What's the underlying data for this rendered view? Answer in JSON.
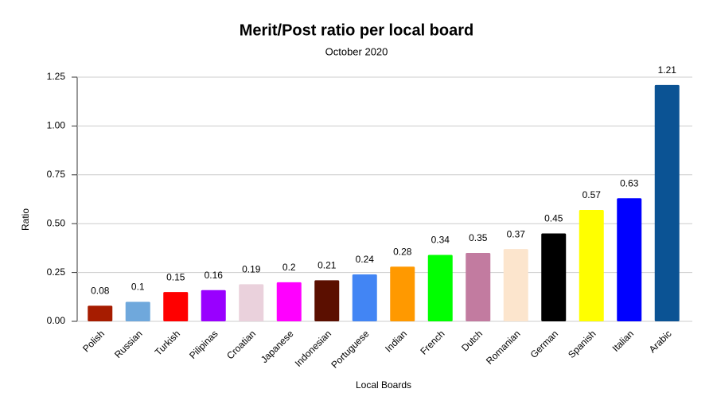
{
  "chart_data": {
    "type": "bar",
    "title": "Merit/Post ratio per local board",
    "subtitle": "October 2020",
    "x_label": "Local Boards",
    "y_label": "Ratio",
    "categories": [
      "Polish",
      "Russian",
      "Turkish",
      "Pilipinas",
      "Croatian",
      "Japanese",
      "Indonesian",
      "Portuguese",
      "Indian",
      "French",
      "Dutch",
      "Romanian",
      "German",
      "Spanish",
      "Italian",
      "Arabic"
    ],
    "values": [
      0.08,
      0.1,
      0.15,
      0.16,
      0.19,
      0.2,
      0.21,
      0.24,
      0.28,
      0.34,
      0.35,
      0.37,
      0.45,
      0.57,
      0.63,
      1.21
    ],
    "colors": [
      "#a61c00",
      "#6fa8dc",
      "#ff0000",
      "#9900ff",
      "#ead1dc",
      "#ff00ff",
      "#5b0f00",
      "#4285f4",
      "#ff9900",
      "#00ff00",
      "#c27ba0",
      "#fce5cd",
      "#000000",
      "#ffff00",
      "#0000ff",
      "#0b5394"
    ],
    "ylim": [
      0,
      1.25
    ],
    "yticks": [
      {
        "value": 0,
        "label": "0.00"
      },
      {
        "value": 0.25,
        "label": "0.25"
      },
      {
        "value": 0.5,
        "label": "0.50"
      },
      {
        "value": 0.75,
        "label": "0.75"
      },
      {
        "value": 1,
        "label": "1.00"
      },
      {
        "value": 1.25,
        "label": "1.25"
      }
    ],
    "grid": true
  }
}
